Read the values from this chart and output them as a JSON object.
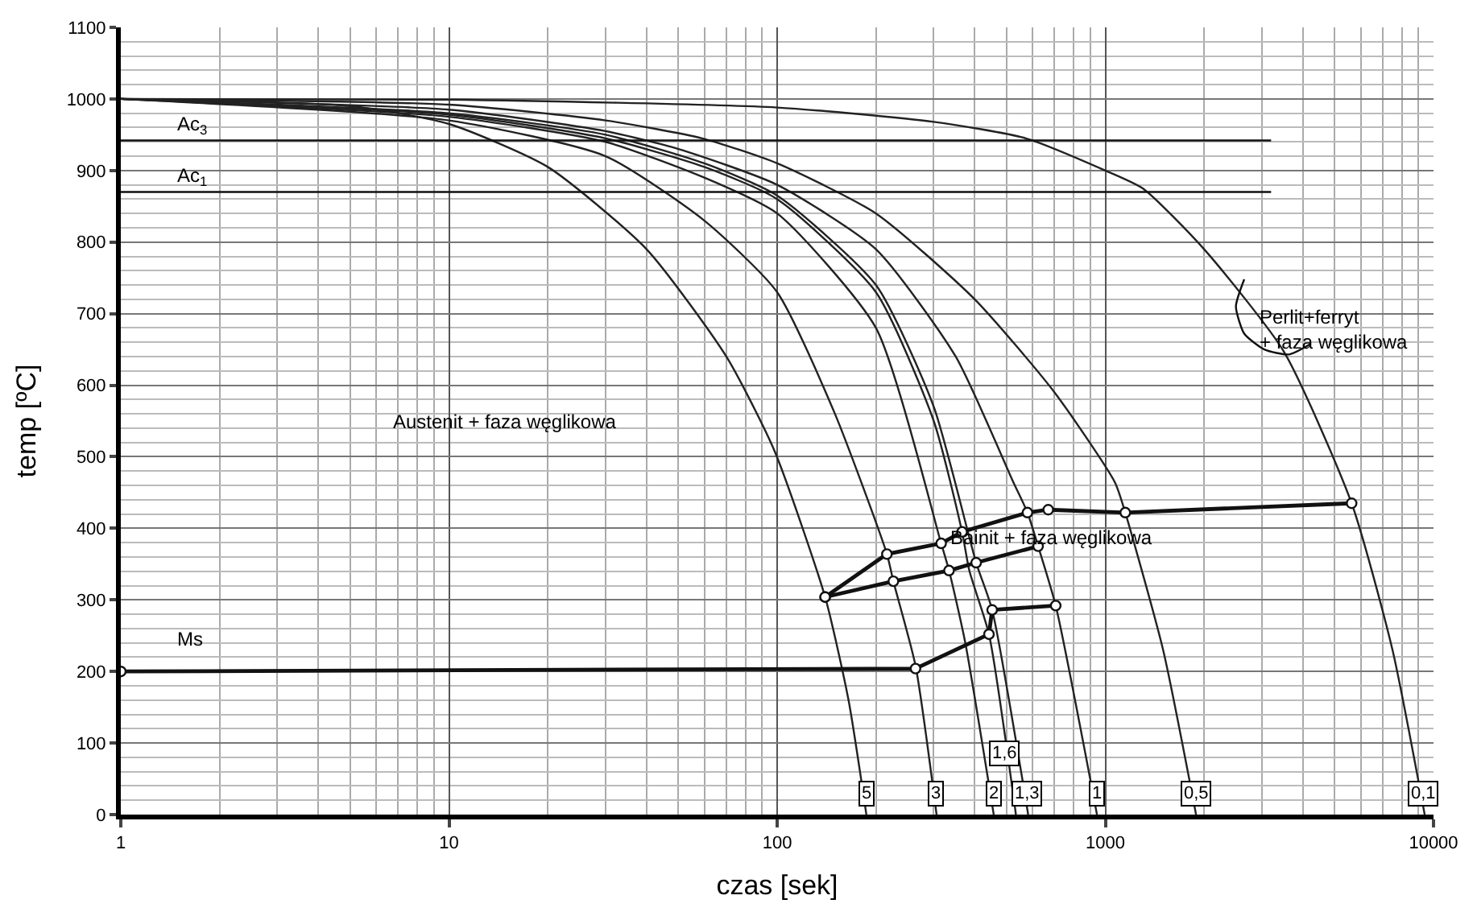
{
  "chart_data": {
    "type": "line",
    "xlabel": "czas [sek]",
    "ylabel": "temp [ºC]",
    "log": "x",
    "grid": true,
    "line_style": "solid",
    "xlim": [
      1,
      10000
    ],
    "xticks": [
      1,
      10,
      100,
      1000,
      10000
    ],
    "ylim": [
      0,
      1100
    ],
    "yticks": [
      0,
      100,
      200,
      300,
      400,
      500,
      600,
      700,
      800,
      900,
      1000,
      1100
    ],
    "series": [
      {
        "color": "#222222",
        "marker": "none",
        "x": [
          1,
          5,
          10,
          20,
          40,
          70,
          98,
          140,
          165,
          187
        ],
        "values": [
          1000,
          990,
          965,
          905,
          790,
          640,
          509,
          304,
          160,
          0
        ]
      },
      {
        "color": "#222222",
        "marker": "none",
        "x": [
          1,
          10,
          30,
          60,
          100,
          150,
          216,
          226,
          264,
          306
        ],
        "values": [
          1000,
          970,
          920,
          830,
          730,
          560,
          364,
          326,
          208,
          0
        ]
      },
      {
        "color": "#222222",
        "marker": "none",
        "x": [
          1,
          10,
          30,
          60,
          100,
          200,
          316,
          334,
          374,
          457
        ],
        "values": [
          1000,
          975,
          940,
          890,
          840,
          680,
          379,
          341,
          241,
          0
        ]
      },
      {
        "color": "#222222",
        "marker": "none",
        "x": [
          1,
          10,
          30,
          60,
          100,
          200,
          300,
          366,
          385,
          442,
          534
        ],
        "values": [
          1000,
          978,
          945,
          905,
          860,
          730,
          550,
          395,
          341,
          252,
          0
        ]
      },
      {
        "color": "#222222",
        "marker": "none",
        "x": [
          1,
          10,
          30,
          60,
          100,
          200,
          300,
          404,
          452,
          582
        ],
        "values": [
          1000,
          980,
          950,
          910,
          865,
          740,
          570,
          352,
          286,
          0
        ]
      },
      {
        "color": "#222222",
        "marker": "none",
        "x": [
          1,
          10,
          30,
          50,
          100,
          200,
          350,
          525,
          579,
          624,
          706,
          943
        ],
        "values": [
          1000,
          985,
          955,
          930,
          880,
          790,
          640,
          464,
          422,
          375,
          292,
          0
        ]
      },
      {
        "color": "#222222",
        "marker": "none",
        "x": [
          1,
          10,
          30,
          59,
          100,
          200,
          400,
          700,
          1070,
          1150,
          1500,
          1890
        ],
        "values": [
          1000,
          992,
          970,
          945,
          910,
          840,
          720,
          590,
          464,
          422,
          230,
          0
        ]
      },
      {
        "color": "#222222",
        "marker": "none",
        "x": [
          1,
          10,
          100,
          300,
          572,
          1000,
          1300,
          2000,
          3500,
          5630,
          7500,
          9400
        ],
        "values": [
          1000,
          999,
          988,
          968,
          945,
          900,
          875,
          790,
          647,
          435,
          230,
          0
        ]
      },
      {
        "color": "#111111",
        "marker": "none",
        "x": [
          1,
          3200
        ],
        "values": [
          942,
          942
        ]
      },
      {
        "color": "#111111",
        "marker": "none",
        "x": [
          1,
          3200
        ],
        "values": [
          870,
          870
        ]
      },
      {
        "color": "#111111",
        "marker": "circle",
        "x": [
          1,
          264,
          442,
          452,
          706
        ],
        "values": [
          200,
          204,
          252,
          286,
          292
        ]
      },
      {
        "color": "#111111",
        "marker": "circle",
        "x": [
          140,
          216,
          316,
          366,
          579,
          670,
          1150,
          5630
        ],
        "values": [
          304,
          364,
          379,
          395,
          422,
          426,
          422,
          435
        ]
      },
      {
        "color": "#111111",
        "marker": "circle",
        "x": [
          140,
          226,
          334,
          404,
          624
        ],
        "values": [
          304,
          326,
          341,
          352,
          375
        ]
      },
      {
        "color": "#111111",
        "marker": "none",
        "x": [
          2650,
          2500,
          2650,
          3050,
          3630,
          4230
        ],
        "values": [
          748,
          710,
          672,
          650,
          643,
          658
        ]
      }
    ],
    "annotations": [
      "Ac$_{3}$",
      "Ac$_{1}$",
      "Ms",
      "Austenit + faza węglikowa",
      "Bainit + faza węglikowa",
      "Perlit+ferryt\n+ faza węglikowa",
      {
        "text": "5",
        "x": 187,
        "y": 30
      },
      {
        "text": "3",
        "x": 306,
        "y": 30
      },
      {
        "text": "2",
        "x": 455,
        "y": 30
      },
      {
        "text": "1,6",
        "x": 490,
        "y": 85
      },
      {
        "text": "1,3",
        "x": 575,
        "y": 30
      },
      {
        "text": "1",
        "x": 943,
        "y": 30
      },
      {
        "text": "0,5",
        "x": 1890,
        "y": 30
      },
      {
        "text": "0,1",
        "x": 9300,
        "y": 30
      }
    ]
  }
}
